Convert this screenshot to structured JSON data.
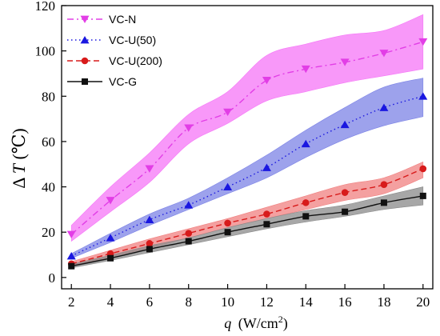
{
  "chart_data": {
    "type": "line",
    "xlabel_var": "q",
    "xlabel_unit_base": "(W/cm",
    "xlabel_unit_sup": "2",
    "xlabel_unit_end": ")",
    "ylabel_prefix": "Δ",
    "ylabel_var": "T",
    "ylabel_unit": "(℃)",
    "xlim": [
      1.5,
      20.5
    ],
    "ylim": [
      -5,
      120
    ],
    "xticks": [
      2,
      4,
      6,
      8,
      10,
      12,
      14,
      16,
      18,
      20
    ],
    "yticks": [
      0,
      20,
      40,
      60,
      80,
      100,
      120
    ],
    "x": [
      2,
      4,
      6,
      8,
      10,
      12,
      14,
      16,
      18,
      20
    ],
    "legend_position": "top-left",
    "grid": false,
    "series": [
      {
        "name": "VC-N",
        "color": "#e23ee6",
        "band_color": "#f576f7",
        "marker": "triangle-down",
        "line_style": "dashdot",
        "values": [
          19,
          34,
          48,
          66,
          73,
          87,
          92,
          95,
          99,
          104
        ],
        "band_upper": [
          23,
          40,
          55,
          72,
          82,
          98,
          103,
          107,
          109,
          116
        ],
        "band_lower": [
          16,
          29,
          42,
          59,
          68,
          78,
          82,
          86,
          89,
          92
        ]
      },
      {
        "name": "VC-U(50)",
        "color": "#1a17e0",
        "band_color": "#7c83e6",
        "marker": "triangle-up",
        "line_style": "dotted",
        "values": [
          9.5,
          17.5,
          25.5,
          32,
          40,
          48.5,
          59,
          67.5,
          75,
          80
        ],
        "band_upper": [
          10.5,
          19.5,
          28,
          35,
          44,
          54,
          65,
          75,
          84,
          88
        ],
        "band_lower": [
          8.5,
          15.5,
          23,
          30,
          37,
          44,
          53,
          61,
          67,
          71
        ]
      },
      {
        "name": "VC-U(200)",
        "color": "#d81b1b",
        "band_color": "#f08080",
        "marker": "circle",
        "line_style": "dashed",
        "values": [
          6,
          10.5,
          15,
          19.5,
          24,
          28,
          33,
          37.5,
          41,
          48
        ],
        "band_upper": [
          7,
          12,
          17,
          21.5,
          26,
          31,
          36,
          41,
          44,
          51
        ],
        "band_lower": [
          5,
          9,
          13,
          17.5,
          22,
          26,
          30,
          34,
          37,
          44
        ]
      },
      {
        "name": "VC-G",
        "color": "#111111",
        "band_color": "#8a8a8a",
        "marker": "square",
        "line_style": "solid",
        "values": [
          5,
          8.5,
          12.5,
          16,
          20,
          23.5,
          27,
          29,
          33,
          36
        ],
        "band_upper": [
          5.8,
          9.8,
          14,
          17.5,
          22,
          26,
          29.5,
          32,
          36,
          40
        ],
        "band_lower": [
          4.2,
          7.5,
          11,
          14.5,
          18,
          21.5,
          24.5,
          27,
          30,
          32
        ]
      }
    ]
  }
}
